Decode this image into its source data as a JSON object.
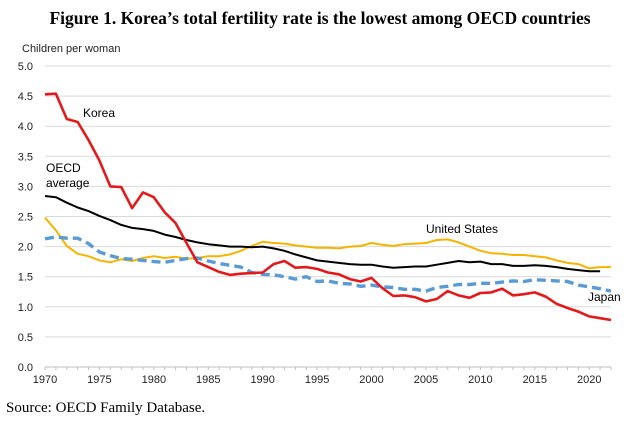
{
  "header": {
    "title": "Figure 1.  Korea’s total fertility rate is the lowest among OECD countries"
  },
  "footer": {
    "source": "Source: OECD Family Database."
  },
  "chart_data": {
    "type": "line",
    "title": "Figure 1.  Korea’s total fertility rate is the lowest among OECD countries",
    "ylabel": "Children per woman",
    "xlabel": "",
    "xlim": [
      1970,
      2022
    ],
    "ylim": [
      0,
      5
    ],
    "yticks": [
      "0.0",
      "0.5",
      "1.0",
      "1.5",
      "2.0",
      "2.5",
      "3.0",
      "3.5",
      "4.0",
      "4.5",
      "5.0"
    ],
    "xticks": [
      1970,
      1975,
      1980,
      1985,
      1990,
      1995,
      2000,
      2005,
      2010,
      2015,
      2020
    ],
    "grid": true,
    "series": [
      {
        "name": "Korea",
        "color": "#e31a1c",
        "dash": false,
        "label_lines": [
          "Korea"
        ],
        "x": [
          1970,
          1971,
          1972,
          1973,
          1974,
          1975,
          1976,
          1977,
          1978,
          1979,
          1980,
          1981,
          1982,
          1983,
          1984,
          1985,
          1986,
          1987,
          1988,
          1989,
          1990,
          1991,
          1992,
          1993,
          1994,
          1995,
          1996,
          1997,
          1998,
          1999,
          2000,
          2001,
          2002,
          2003,
          2004,
          2005,
          2006,
          2007,
          2008,
          2009,
          2010,
          2011,
          2012,
          2013,
          2014,
          2015,
          2016,
          2017,
          2018,
          2019,
          2020,
          2021,
          2022
        ],
        "y": [
          4.53,
          4.54,
          4.12,
          4.07,
          3.77,
          3.43,
          3.0,
          2.99,
          2.64,
          2.9,
          2.82,
          2.57,
          2.39,
          2.06,
          1.74,
          1.66,
          1.58,
          1.53,
          1.55,
          1.56,
          1.57,
          1.71,
          1.76,
          1.65,
          1.66,
          1.63,
          1.57,
          1.54,
          1.46,
          1.42,
          1.48,
          1.31,
          1.18,
          1.19,
          1.16,
          1.09,
          1.13,
          1.26,
          1.19,
          1.15,
          1.23,
          1.24,
          1.3,
          1.19,
          1.21,
          1.24,
          1.17,
          1.05,
          0.98,
          0.92,
          0.84,
          0.81,
          0.78
        ]
      },
      {
        "name": "OECD average",
        "color": "#000000",
        "dash": false,
        "label_lines": [
          "OECD",
          "average"
        ],
        "x": [
          1970,
          1971,
          1972,
          1973,
          1974,
          1975,
          1976,
          1977,
          1978,
          1979,
          1980,
          1981,
          1982,
          1983,
          1984,
          1985,
          1986,
          1987,
          1988,
          1989,
          1990,
          1991,
          1992,
          1993,
          1994,
          1995,
          1996,
          1997,
          1998,
          1999,
          2000,
          2001,
          2002,
          2003,
          2004,
          2005,
          2006,
          2007,
          2008,
          2009,
          2010,
          2011,
          2012,
          2013,
          2014,
          2015,
          2016,
          2017,
          2018,
          2019,
          2020,
          2021
        ],
        "y": [
          2.84,
          2.82,
          2.73,
          2.65,
          2.59,
          2.51,
          2.44,
          2.36,
          2.31,
          2.29,
          2.26,
          2.2,
          2.16,
          2.11,
          2.07,
          2.04,
          2.02,
          2.0,
          2.0,
          1.99,
          2.0,
          1.97,
          1.93,
          1.87,
          1.82,
          1.77,
          1.75,
          1.73,
          1.71,
          1.7,
          1.7,
          1.67,
          1.65,
          1.66,
          1.67,
          1.67,
          1.7,
          1.73,
          1.76,
          1.74,
          1.75,
          1.71,
          1.71,
          1.68,
          1.68,
          1.69,
          1.68,
          1.66,
          1.63,
          1.61,
          1.59,
          1.59
        ]
      },
      {
        "name": "United States",
        "color": "#f5b400",
        "dash": false,
        "label_lines": [
          "United States"
        ],
        "x": [
          1970,
          1971,
          1972,
          1973,
          1974,
          1975,
          1976,
          1977,
          1978,
          1979,
          1980,
          1981,
          1982,
          1983,
          1984,
          1985,
          1986,
          1987,
          1988,
          1989,
          1990,
          1991,
          1992,
          1993,
          1994,
          1995,
          1996,
          1997,
          1998,
          1999,
          2000,
          2001,
          2002,
          2003,
          2004,
          2005,
          2006,
          2007,
          2008,
          2009,
          2010,
          2011,
          2012,
          2013,
          2014,
          2015,
          2016,
          2017,
          2018,
          2019,
          2020,
          2021,
          2022
        ],
        "y": [
          2.48,
          2.27,
          2.01,
          1.88,
          1.84,
          1.77,
          1.74,
          1.79,
          1.76,
          1.81,
          1.84,
          1.81,
          1.83,
          1.8,
          1.81,
          1.84,
          1.84,
          1.87,
          1.93,
          2.01,
          2.08,
          2.06,
          2.05,
          2.02,
          2.0,
          1.98,
          1.98,
          1.97,
          2.0,
          2.01,
          2.06,
          2.03,
          2.01,
          2.04,
          2.05,
          2.06,
          2.11,
          2.12,
          2.07,
          2.0,
          1.93,
          1.89,
          1.88,
          1.86,
          1.86,
          1.84,
          1.82,
          1.77,
          1.73,
          1.71,
          1.64,
          1.66,
          1.66
        ]
      },
      {
        "name": "Japan",
        "color": "#5b9bd5",
        "dash": true,
        "label_lines": [
          "Japan"
        ],
        "x": [
          1970,
          1971,
          1972,
          1973,
          1974,
          1975,
          1976,
          1977,
          1978,
          1979,
          1980,
          1981,
          1982,
          1983,
          1984,
          1985,
          1986,
          1987,
          1988,
          1989,
          1990,
          1991,
          1992,
          1993,
          1994,
          1995,
          1996,
          1997,
          1998,
          1999,
          2000,
          2001,
          2002,
          2003,
          2004,
          2005,
          2006,
          2007,
          2008,
          2009,
          2010,
          2011,
          2012,
          2013,
          2014,
          2015,
          2016,
          2017,
          2018,
          2019,
          2020,
          2021,
          2022
        ],
        "y": [
          2.13,
          2.16,
          2.14,
          2.14,
          2.05,
          1.91,
          1.85,
          1.8,
          1.79,
          1.77,
          1.75,
          1.74,
          1.77,
          1.8,
          1.81,
          1.76,
          1.72,
          1.69,
          1.66,
          1.57,
          1.54,
          1.53,
          1.5,
          1.46,
          1.5,
          1.42,
          1.43,
          1.39,
          1.38,
          1.34,
          1.36,
          1.33,
          1.32,
          1.29,
          1.29,
          1.26,
          1.32,
          1.34,
          1.37,
          1.37,
          1.39,
          1.39,
          1.41,
          1.43,
          1.42,
          1.45,
          1.44,
          1.43,
          1.42,
          1.36,
          1.33,
          1.3,
          1.26
        ]
      }
    ]
  }
}
